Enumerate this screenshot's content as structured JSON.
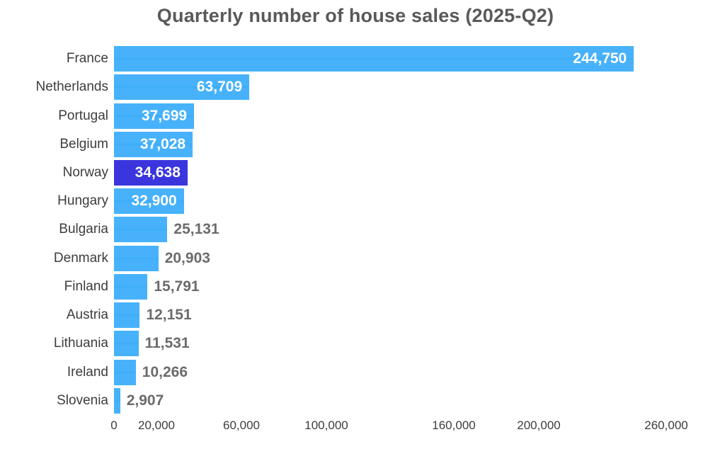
{
  "title": "Quarterly number of house sales (2025-Q2)",
  "chart_data": {
    "type": "bar",
    "orientation": "horizontal",
    "title": "Quarterly number of house sales (2025-Q2)",
    "categories": [
      "France",
      "Netherlands",
      "Portugal",
      "Belgium",
      "Norway",
      "Hungary",
      "Bulgaria",
      "Denmark",
      "Finland",
      "Austria",
      "Lithuania",
      "Ireland",
      "Slovenia"
    ],
    "values": [
      244750,
      63709,
      37699,
      37028,
      34638,
      32900,
      25131,
      20903,
      15791,
      12151,
      11531,
      10266,
      2907
    ],
    "value_labels": [
      "244,750",
      "63,709",
      "37,699",
      "37,028",
      "34,638",
      "32,900",
      "25,131",
      "20,903",
      "15,791",
      "12,151",
      "11,531",
      "10,266",
      "2,907"
    ],
    "highlight_category": "Norway",
    "highlight_index": 4,
    "xlabel": "",
    "ylabel": "",
    "xlim": [
      0,
      280000
    ],
    "grid": false,
    "legend": false,
    "x_ticks": [
      {
        "value": 0,
        "label": "0"
      },
      {
        "value": 20000,
        "label": "20,000"
      },
      {
        "value": 60000,
        "label": "60,000"
      },
      {
        "value": 100000,
        "label": "100,000"
      },
      {
        "value": 160000,
        "label": "160,000"
      },
      {
        "value": 200000,
        "label": "200,000"
      },
      {
        "value": 260000,
        "label": "260,000"
      }
    ],
    "colors": {
      "background": "#ffffff",
      "bar": "#47b2fb",
      "bar_stripe": "#3fadf9",
      "highlight_bar": "#3a35dd",
      "value_inside": "#ffffff",
      "value_outside": "#6b6b6b",
      "category_label": "#3d3d3d",
      "tick_label": "#3d3d3d",
      "title": "#595959"
    }
  }
}
